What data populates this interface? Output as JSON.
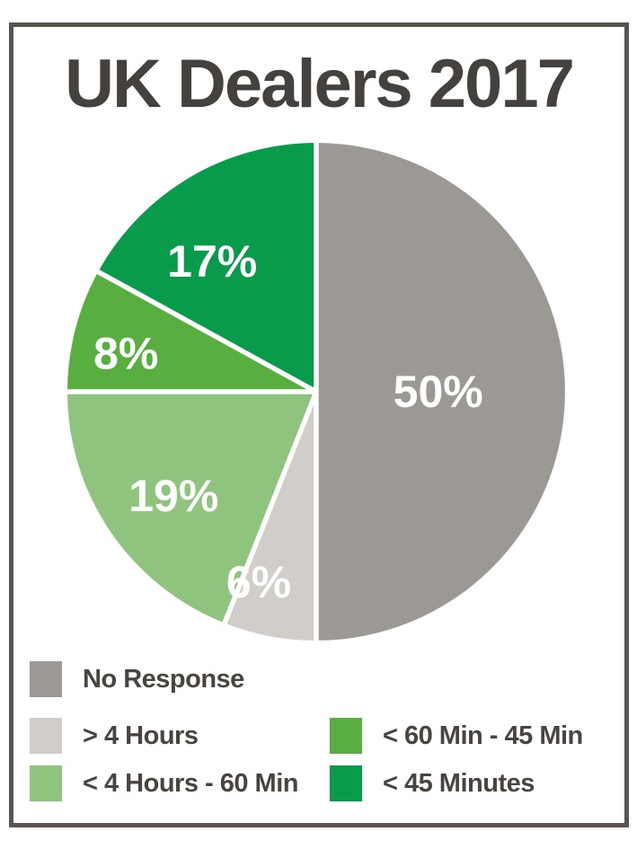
{
  "title": "UK Dealers 2017",
  "chart_data": {
    "type": "pie",
    "title": "UK Dealers 2017",
    "start_angle_deg": 0,
    "direction": "clockwise",
    "total": 100,
    "separator_color": "#ffffff",
    "label_color": "#ffffff",
    "legend_position": "bottom",
    "slices": [
      {
        "label": "No Response",
        "value": 50,
        "display": "50%",
        "color": "#9c9894",
        "label_frac": 0.49,
        "label_angle_offset": 0
      },
      {
        "label": "> 4 Hours",
        "value": 6,
        "display": "6%",
        "color": "#d1cdc9",
        "label_frac": 0.8,
        "label_angle_offset": 6
      },
      {
        "label": "< 4 Hours - 60 Min",
        "value": 19,
        "display": "19%",
        "color": "#8ec47e",
        "label_frac": 0.71,
        "label_angle_offset": -2
      },
      {
        "label": "< 60 Min - 45 Min",
        "value": 8,
        "display": "8%",
        "color": "#59ae40",
        "label_frac": 0.78,
        "label_angle_offset": -3
      },
      {
        "label": "< 45 Minutes",
        "value": 17,
        "display": "17%",
        "color": "#079b4b",
        "label_frac": 0.67,
        "label_angle_offset": -8
      }
    ]
  },
  "legend": {
    "items": [
      {
        "label": "No Response",
        "color": "#9c9894"
      },
      {
        "label": "> 4 Hours",
        "color": "#d1cdc9"
      },
      {
        "label": "< 60 Min - 45 Min",
        "color": "#59ae40"
      },
      {
        "label": "< 4 Hours - 60 Min",
        "color": "#8ec47e"
      },
      {
        "label": "< 45 Minutes",
        "color": "#079b4b"
      }
    ]
  },
  "colors": {
    "border": "#5a5450",
    "title_text": "#45413e",
    "legend_text": "#49443f",
    "background": "#ffffff"
  }
}
